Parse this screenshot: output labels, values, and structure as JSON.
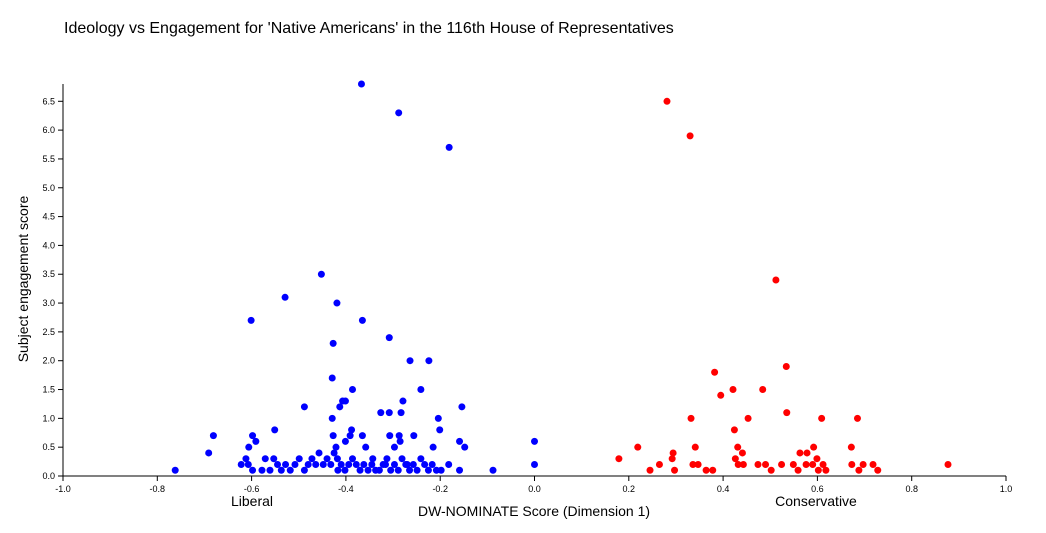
{
  "chart_data": {
    "type": "scatter",
    "title": "Ideology vs Engagement for 'Native Americans' in the 116th House of Representatives",
    "xlabel": "DW-NOMINATE Score (Dimension 1)",
    "ylabel": "Subject engagement score",
    "xlim": [
      -1.0,
      1.0
    ],
    "ylim": [
      0.0,
      6.8
    ],
    "x_ticks": [
      "-1.0",
      "-0.8",
      "-0.6",
      "-0.4",
      "-0.2",
      "0.0",
      "0.2",
      "0.4",
      "0.6",
      "0.8",
      "1.0"
    ],
    "y_ticks": [
      "0.0",
      "0.5",
      "1.0",
      "1.5",
      "2.0",
      "2.5",
      "3.0",
      "3.5",
      "4.0",
      "4.5",
      "5.0",
      "5.5",
      "6.0",
      "6.5"
    ],
    "annotations": {
      "left": "Liberal",
      "right": "Conservative"
    },
    "grid": false,
    "series": [
      {
        "color": "#0000ff",
        "points": [
          [
            -0.367,
            6.8
          ],
          [
            -0.288,
            6.3
          ],
          [
            -0.181,
            5.7
          ],
          [
            -0.452,
            3.5
          ],
          [
            -0.529,
            3.1
          ],
          [
            -0.419,
            3.0
          ],
          [
            -0.601,
            2.7
          ],
          [
            -0.365,
            2.7
          ],
          [
            -0.308,
            2.4
          ],
          [
            -0.427,
            2.3
          ],
          [
            -0.264,
            2.0
          ],
          [
            -0.224,
            2.0
          ],
          [
            -0.429,
            1.7
          ],
          [
            -0.386,
            1.5
          ],
          [
            -0.241,
            1.5
          ],
          [
            -0.407,
            1.3
          ],
          [
            -0.279,
            1.3
          ],
          [
            -0.401,
            1.3
          ],
          [
            -0.488,
            1.2
          ],
          [
            -0.413,
            1.2
          ],
          [
            -0.154,
            1.2
          ],
          [
            -0.326,
            1.1
          ],
          [
            -0.308,
            1.1
          ],
          [
            -0.283,
            1.1
          ],
          [
            -0.429,
            1.0
          ],
          [
            -0.204,
            1.0
          ],
          [
            -0.201,
            0.8
          ],
          [
            -0.388,
            0.8
          ],
          [
            -0.681,
            0.7
          ],
          [
            -0.598,
            0.7
          ],
          [
            -0.427,
            0.7
          ],
          [
            -0.391,
            0.7
          ],
          [
            -0.365,
            0.7
          ],
          [
            -0.307,
            0.7
          ],
          [
            -0.287,
            0.7
          ],
          [
            -0.256,
            0.7
          ],
          [
            -0.591,
            0.6
          ],
          [
            -0.401,
            0.6
          ],
          [
            -0.285,
            0.6
          ],
          [
            -0.159,
            0.6
          ],
          [
            0.0,
            0.6
          ],
          [
            -0.606,
            0.5
          ],
          [
            -0.421,
            0.5
          ],
          [
            -0.358,
            0.5
          ],
          [
            -0.297,
            0.5
          ],
          [
            -0.215,
            0.5
          ],
          [
            -0.148,
            0.5
          ],
          [
            -0.691,
            0.4
          ],
          [
            -0.551,
            0.8
          ],
          [
            -0.622,
            0.2
          ],
          [
            -0.612,
            0.3
          ],
          [
            -0.607,
            0.2
          ],
          [
            -0.598,
            0.1
          ],
          [
            -0.578,
            0.1
          ],
          [
            -0.571,
            0.3
          ],
          [
            -0.561,
            0.1
          ],
          [
            -0.553,
            0.3
          ],
          [
            -0.545,
            0.2
          ],
          [
            -0.537,
            0.1
          ],
          [
            -0.528,
            0.2
          ],
          [
            -0.518,
            0.1
          ],
          [
            -0.508,
            0.2
          ],
          [
            -0.499,
            0.3
          ],
          [
            -0.488,
            0.1
          ],
          [
            -0.48,
            0.2
          ],
          [
            -0.472,
            0.3
          ],
          [
            -0.464,
            0.2
          ],
          [
            -0.457,
            0.4
          ],
          [
            -0.448,
            0.2
          ],
          [
            -0.44,
            0.3
          ],
          [
            -0.432,
            0.2
          ],
          [
            -0.425,
            0.4
          ],
          [
            -0.418,
            0.3
          ],
          [
            -0.41,
            0.2
          ],
          [
            -0.402,
            0.1
          ],
          [
            -0.394,
            0.2
          ],
          [
            -0.386,
            0.3
          ],
          [
            -0.378,
            0.2
          ],
          [
            -0.37,
            0.1
          ],
          [
            -0.362,
            0.2
          ],
          [
            -0.353,
            0.1
          ],
          [
            -0.345,
            0.2
          ],
          [
            -0.337,
            0.1
          ],
          [
            -0.329,
            0.1
          ],
          [
            -0.321,
            0.2
          ],
          [
            -0.313,
            0.3
          ],
          [
            -0.305,
            0.1
          ],
          [
            -0.297,
            0.2
          ],
          [
            -0.289,
            0.1
          ],
          [
            -0.281,
            0.3
          ],
          [
            -0.273,
            0.2
          ],
          [
            -0.265,
            0.1
          ],
          [
            -0.257,
            0.2
          ],
          [
            -0.249,
            0.1
          ],
          [
            -0.241,
            0.3
          ],
          [
            -0.233,
            0.2
          ],
          [
            -0.225,
            0.1
          ],
          [
            -0.217,
            0.2
          ],
          [
            -0.208,
            0.1
          ],
          [
            -0.198,
            0.1
          ],
          [
            -0.182,
            0.2
          ],
          [
            -0.159,
            0.1
          ],
          [
            -0.088,
            0.1
          ],
          [
            0.0,
            0.2
          ],
          [
            -0.762,
            0.1
          ],
          [
            -0.417,
            0.1
          ],
          [
            -0.343,
            0.3
          ],
          [
            -0.316,
            0.2
          ],
          [
            -0.27,
            0.2
          ]
        ]
      },
      {
        "color": "#ff0000",
        "points": [
          [
            0.281,
            6.5
          ],
          [
            0.33,
            5.9
          ],
          [
            0.512,
            3.4
          ],
          [
            0.534,
            1.9
          ],
          [
            0.382,
            1.8
          ],
          [
            0.421,
            1.5
          ],
          [
            0.484,
            1.5
          ],
          [
            0.395,
            1.4
          ],
          [
            0.332,
            1.0
          ],
          [
            0.453,
            1.0
          ],
          [
            0.535,
            1.1
          ],
          [
            0.609,
            1.0
          ],
          [
            0.685,
            1.0
          ],
          [
            0.424,
            0.8
          ],
          [
            0.441,
            0.4
          ],
          [
            0.219,
            0.5
          ],
          [
            0.294,
            0.4
          ],
          [
            0.341,
            0.5
          ],
          [
            0.431,
            0.5
          ],
          [
            0.592,
            0.5
          ],
          [
            0.672,
            0.5
          ],
          [
            0.179,
            0.3
          ],
          [
            0.292,
            0.3
          ],
          [
            0.426,
            0.3
          ],
          [
            0.578,
            0.4
          ],
          [
            0.563,
            0.4
          ],
          [
            0.599,
            0.3
          ],
          [
            0.265,
            0.2
          ],
          [
            0.336,
            0.2
          ],
          [
            0.347,
            0.2
          ],
          [
            0.432,
            0.2
          ],
          [
            0.443,
            0.2
          ],
          [
            0.474,
            0.2
          ],
          [
            0.49,
            0.2
          ],
          [
            0.524,
            0.2
          ],
          [
            0.549,
            0.2
          ],
          [
            0.576,
            0.2
          ],
          [
            0.59,
            0.2
          ],
          [
            0.612,
            0.2
          ],
          [
            0.673,
            0.2
          ],
          [
            0.697,
            0.2
          ],
          [
            0.718,
            0.2
          ],
          [
            0.877,
            0.2
          ],
          [
            0.245,
            0.1
          ],
          [
            0.297,
            0.1
          ],
          [
            0.364,
            0.1
          ],
          [
            0.378,
            0.1
          ],
          [
            0.502,
            0.1
          ],
          [
            0.559,
            0.1
          ],
          [
            0.602,
            0.1
          ],
          [
            0.618,
            0.1
          ],
          [
            0.688,
            0.1
          ],
          [
            0.728,
            0.1
          ]
        ]
      }
    ]
  }
}
